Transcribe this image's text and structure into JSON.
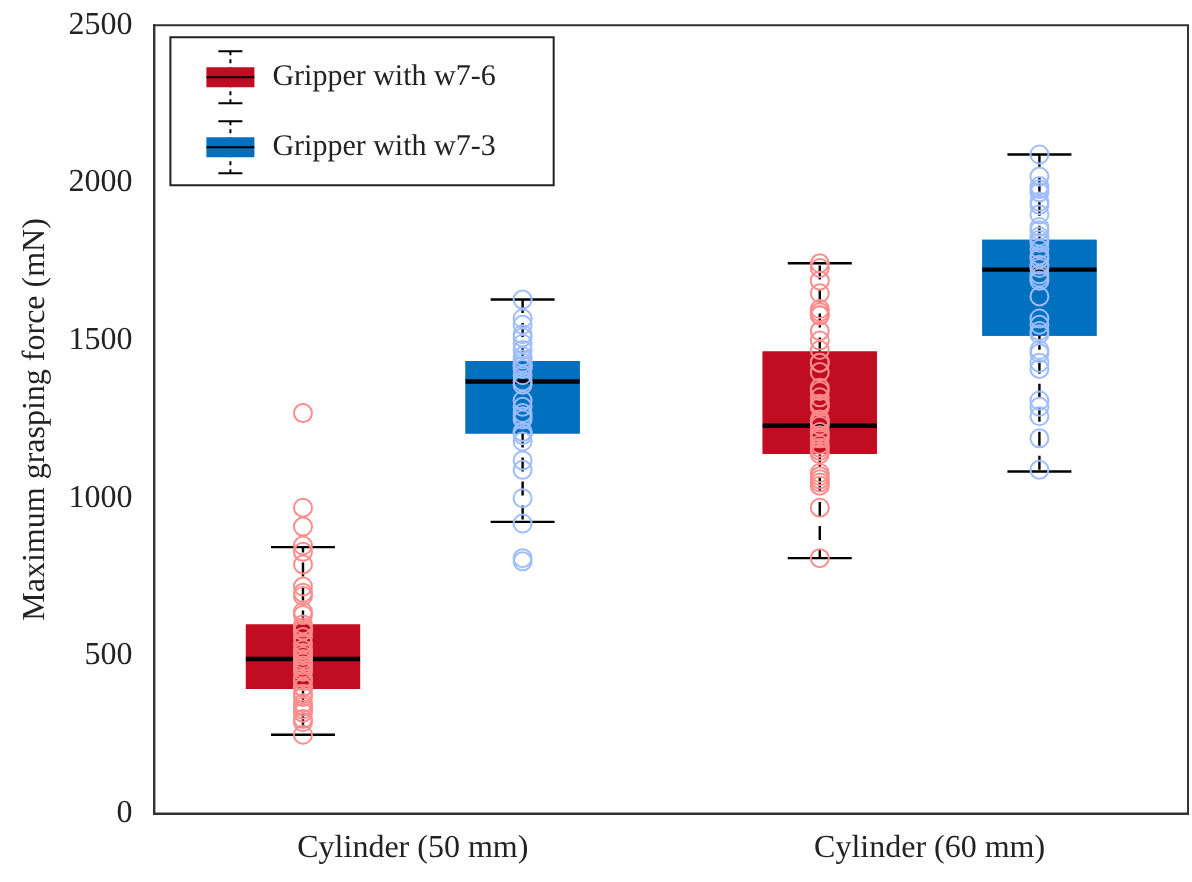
{
  "chart_data": {
    "type": "box",
    "ylabel": "Maximum grasping force (mN)",
    "categories": [
      "Cylinder (50 mm)",
      "Cylinder (60 mm)"
    ],
    "ylim": [
      0,
      2500
    ],
    "yticks": [
      0,
      500,
      1000,
      1500,
      2000,
      2500
    ],
    "grid": false,
    "legend": "top left",
    "marker": "circle",
    "series": [
      {
        "name": "Gripper with w7-6",
        "color": "#c00d21",
        "boxes": [
          {
            "low": 250,
            "q1": 395,
            "median": 490,
            "q3": 600,
            "high": 845
          },
          {
            "low": 810,
            "q1": 1140,
            "median": 1230,
            "q3": 1465,
            "high": 1745
          }
        ]
      },
      {
        "name": "Gripper with w7-3",
        "color": "#0070bf",
        "boxes": [
          {
            "low": 925,
            "q1": 1205,
            "median": 1370,
            "q3": 1435,
            "high": 1630
          },
          {
            "low": 1085,
            "q1": 1515,
            "median": 1725,
            "q3": 1820,
            "high": 2090
          }
        ]
      },
      {
        "type": "scatter",
        "color": "#ff8c8c",
        "x": [
          "Cylinder (50 mm)",
          "Cylinder (50 mm)",
          "Cylinder (50 mm)",
          "Cylinder (50 mm)",
          "Cylinder (50 mm)",
          "Cylinder (50 mm)",
          "Cylinder (50 mm)",
          "Cylinder (50 mm)",
          "Cylinder (50 mm)",
          "Cylinder (50 mm)",
          "Cylinder (50 mm)",
          "Cylinder (50 mm)",
          "Cylinder (50 mm)",
          "Cylinder (50 mm)",
          "Cylinder (50 mm)",
          "Cylinder (50 mm)",
          "Cylinder (50 mm)",
          "Cylinder (50 mm)",
          "Cylinder (50 mm)",
          "Cylinder (50 mm)",
          "Cylinder (50 mm)",
          "Cylinder (50 mm)",
          "Cylinder (50 mm)",
          "Cylinder (50 mm)",
          "Cylinder (50 mm)",
          "Cylinder (50 mm)",
          "Cylinder (50 mm)",
          "Cylinder (50 mm)",
          "Cylinder (50 mm)",
          "Cylinder (50 mm)",
          "Cylinder (50 mm)",
          "Cylinder (50 mm)",
          "Cylinder (50 mm)",
          "Cylinder (50 mm)",
          "Cylinder (50 mm)",
          "Cylinder (50 mm)",
          "Cylinder (50 mm)",
          "Cylinder (50 mm)",
          "Cylinder (50 mm)",
          "Cylinder (60 mm)",
          "Cylinder (60 mm)",
          "Cylinder (60 mm)",
          "Cylinder (60 mm)",
          "Cylinder (60 mm)",
          "Cylinder (60 mm)",
          "Cylinder (60 mm)",
          "Cylinder (60 mm)",
          "Cylinder (60 mm)",
          "Cylinder (60 mm)",
          "Cylinder (60 mm)",
          "Cylinder (60 mm)",
          "Cylinder (60 mm)",
          "Cylinder (60 mm)",
          "Cylinder (60 mm)",
          "Cylinder (60 mm)",
          "Cylinder (60 mm)",
          "Cylinder (60 mm)",
          "Cylinder (60 mm)",
          "Cylinder (60 mm)",
          "Cylinder (60 mm)",
          "Cylinder (60 mm)",
          "Cylinder (60 mm)",
          "Cylinder (60 mm)",
          "Cylinder (60 mm)",
          "Cylinder (60 mm)",
          "Cylinder (60 mm)",
          "Cylinder (60 mm)",
          "Cylinder (60 mm)",
          "Cylinder (60 mm)",
          "Cylinder (60 mm)",
          "Cylinder (60 mm)",
          "Cylinder (60 mm)",
          "Cylinder (60 mm)",
          "Cylinder (60 mm)",
          "Cylinder (60 mm)"
        ],
        "values": [
          1270,
          970,
          910,
          850,
          830,
          790,
          720,
          700,
          690,
          640,
          630,
          600,
          590,
          580,
          580,
          560,
          540,
          520,
          510,
          500,
          490,
          480,
          480,
          470,
          460,
          450,
          430,
          420,
          400,
          400,
          380,
          370,
          350,
          340,
          330,
          320,
          300,
          290,
          250,
          1745,
          1730,
          1690,
          1650,
          1600,
          1590,
          1580,
          1580,
          1530,
          1500,
          1470,
          1430,
          1430,
          1400,
          1350,
          1340,
          1320,
          1300,
          1290,
          1250,
          1240,
          1230,
          1210,
          1200,
          1190,
          1170,
          1160,
          1150,
          1140,
          1080,
          1070,
          1060,
          1050,
          1040,
          970,
          810
        ]
      },
      {
        "type": "scatter",
        "color": "#9dbdff",
        "x": [
          "Cylinder (50 mm)",
          "Cylinder (50 mm)",
          "Cylinder (50 mm)",
          "Cylinder (50 mm)",
          "Cylinder (50 mm)",
          "Cylinder (50 mm)",
          "Cylinder (50 mm)",
          "Cylinder (50 mm)",
          "Cylinder (50 mm)",
          "Cylinder (50 mm)",
          "Cylinder (50 mm)",
          "Cylinder (50 mm)",
          "Cylinder (50 mm)",
          "Cylinder (50 mm)",
          "Cylinder (50 mm)",
          "Cylinder (50 mm)",
          "Cylinder (50 mm)",
          "Cylinder (50 mm)",
          "Cylinder (50 mm)",
          "Cylinder (50 mm)",
          "Cylinder (50 mm)",
          "Cylinder (50 mm)",
          "Cylinder (50 mm)",
          "Cylinder (50 mm)",
          "Cylinder (50 mm)",
          "Cylinder (50 mm)",
          "Cylinder (50 mm)",
          "Cylinder (50 mm)",
          "Cylinder (50 mm)",
          "Cylinder (50 mm)",
          "Cylinder (50 mm)",
          "Cylinder (60 mm)",
          "Cylinder (60 mm)",
          "Cylinder (60 mm)",
          "Cylinder (60 mm)",
          "Cylinder (60 mm)",
          "Cylinder (60 mm)",
          "Cylinder (60 mm)",
          "Cylinder (60 mm)",
          "Cylinder (60 mm)",
          "Cylinder (60 mm)",
          "Cylinder (60 mm)",
          "Cylinder (60 mm)",
          "Cylinder (60 mm)",
          "Cylinder (60 mm)",
          "Cylinder (60 mm)",
          "Cylinder (60 mm)",
          "Cylinder (60 mm)",
          "Cylinder (60 mm)",
          "Cylinder (60 mm)",
          "Cylinder (60 mm)",
          "Cylinder (60 mm)",
          "Cylinder (60 mm)",
          "Cylinder (60 mm)",
          "Cylinder (60 mm)",
          "Cylinder (60 mm)",
          "Cylinder (60 mm)",
          "Cylinder (60 mm)",
          "Cylinder (60 mm)",
          "Cylinder (60 mm)",
          "Cylinder (60 mm)",
          "Cylinder (60 mm)",
          "Cylinder (60 mm)",
          "Cylinder (60 mm)",
          "Cylinder (60 mm)",
          "Cylinder (60 mm)"
        ],
        "values": [
          1630,
          1570,
          1550,
          1520,
          1510,
          1490,
          1470,
          1450,
          1440,
          1430,
          1420,
          1420,
          1410,
          1390,
          1370,
          1360,
          1310,
          1290,
          1270,
          1260,
          1250,
          1210,
          1210,
          1200,
          1180,
          1120,
          1090,
          1000,
          920,
          810,
          800,
          2090,
          2020,
          1990,
          1980,
          1970,
          1940,
          1930,
          1900,
          1860,
          1850,
          1830,
          1820,
          1810,
          1790,
          1770,
          1760,
          1740,
          1730,
          1710,
          1700,
          1690,
          1640,
          1570,
          1550,
          1530,
          1520,
          1470,
          1460,
          1430,
          1410,
          1310,
          1290,
          1260,
          1190,
          1090
        ]
      }
    ]
  }
}
